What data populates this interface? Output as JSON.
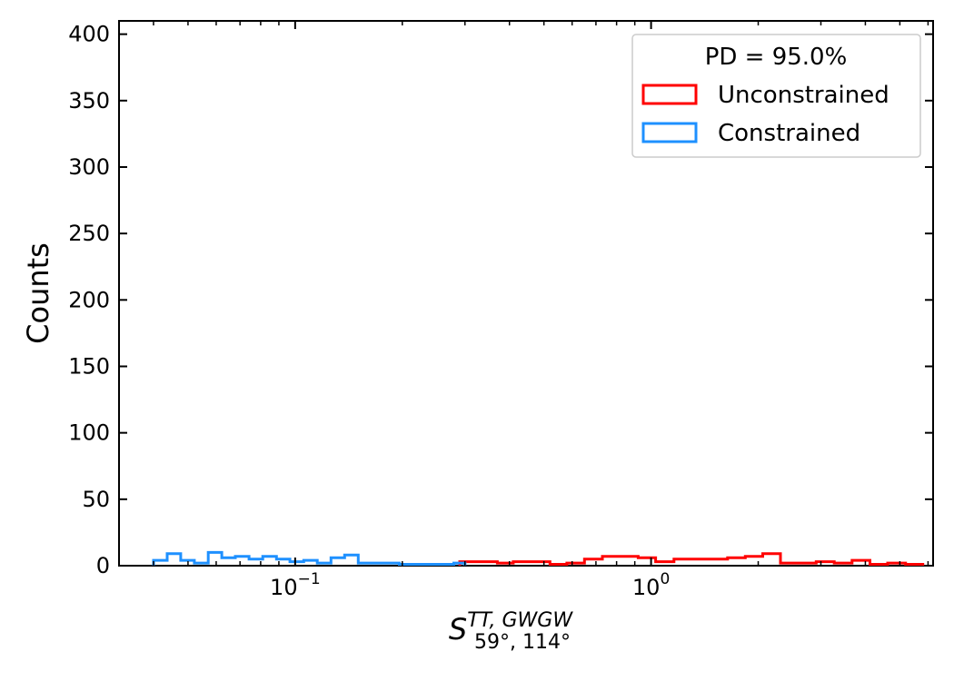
{
  "chart_data": {
    "type": "histogram",
    "xscale": "log",
    "xlim": [
      0.032,
      6.2
    ],
    "ylim": [
      0,
      410
    ],
    "ylabel": "Counts",
    "xlabel": {
      "main": "S",
      "superscript": "TT, GWGW",
      "subscript": "59°, 114°"
    },
    "yticks": [
      0,
      50,
      100,
      150,
      200,
      250,
      300,
      350,
      400
    ],
    "xtick_labels": [
      {
        "value": 0.1,
        "base": "10",
        "exp": "−1"
      },
      {
        "value": 1,
        "base": "10",
        "exp": "0"
      }
    ],
    "legend": {
      "title": "PD  = 95.0%",
      "location": "upper right",
      "entries": [
        "Unconstrained",
        "Constrained"
      ]
    },
    "series": [
      {
        "name": "Unconstrained",
        "color": "#ff0000",
        "edges": [
          0.29,
          0.33,
          0.37,
          0.41,
          0.46,
          0.52,
          0.58,
          0.65,
          0.73,
          0.82,
          0.92,
          1.03,
          1.16,
          1.3,
          1.46,
          1.64,
          1.84,
          2.06,
          2.31,
          2.6,
          2.91,
          3.27,
          3.67,
          4.12,
          4.62,
          5.19,
          5.8
        ],
        "counts": [
          3,
          3,
          2,
          3,
          3,
          1,
          2,
          5,
          7,
          7,
          6,
          3,
          5,
          5,
          5,
          6,
          7,
          9,
          2,
          2,
          3,
          2,
          4,
          1,
          2,
          1
        ]
      },
      {
        "name": "Constrained",
        "color": "#1e90ff",
        "edges": [
          0.04,
          0.0437,
          0.0477,
          0.0521,
          0.057,
          0.0622,
          0.0679,
          0.0742,
          0.0811,
          0.0886,
          0.0967,
          0.1057,
          0.1154,
          0.1261,
          0.1377,
          0.1504,
          0.1643,
          0.1795,
          0.1961,
          0.2142,
          0.234,
          0.2556,
          0.2792,
          0.3
        ],
        "counts": [
          4,
          9,
          4,
          2,
          10,
          6,
          7,
          5,
          7,
          5,
          3,
          4,
          2,
          6,
          8,
          2,
          2,
          2,
          1,
          1,
          1,
          1,
          2
        ]
      }
    ]
  }
}
